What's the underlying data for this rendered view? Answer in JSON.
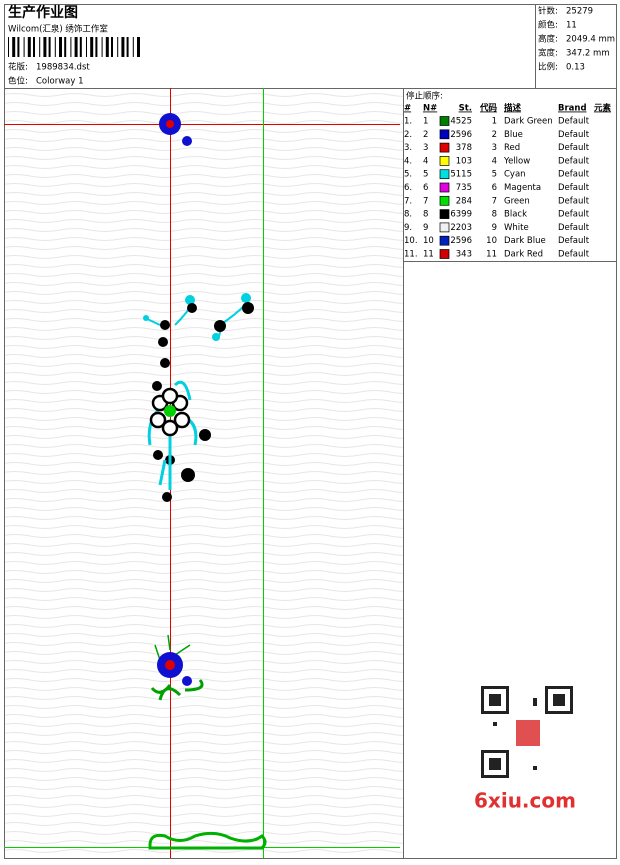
{
  "header": {
    "title": "生产作业图",
    "studio": "Wilcom(汇泉) 绣饰工作室",
    "file_label": "花版:",
    "file": "1989834.dst",
    "colorway_label": "色位:",
    "colorway": "Colorway 1"
  },
  "info": [
    {
      "label": "针数:",
      "value": "25279"
    },
    {
      "label": "颜色:",
      "value": "11"
    },
    {
      "label": "高度:",
      "value": "2049.4 mm"
    },
    {
      "label": "宽度:",
      "value": "347.2 mm"
    },
    {
      "label": "比例:",
      "value": "0.13"
    }
  ],
  "table": {
    "title": "停止顺序:",
    "columns": [
      "#",
      "N#",
      "St.",
      "代码",
      "描述",
      "Brand",
      "元素"
    ],
    "rows": [
      {
        "no": "1.",
        "needle": "1",
        "color": "#008000",
        "stitches": "4525",
        "code": "1",
        "desc": "Dark Green",
        "brand": "Default"
      },
      {
        "no": "2.",
        "needle": "2",
        "color": "#0000c0",
        "stitches": "2596",
        "code": "2",
        "desc": "Blue",
        "brand": "Default"
      },
      {
        "no": "3.",
        "needle": "3",
        "color": "#e00000",
        "stitches": "378",
        "code": "3",
        "desc": "Red",
        "brand": "Default"
      },
      {
        "no": "4.",
        "needle": "4",
        "color": "#ffff00",
        "stitches": "103",
        "code": "4",
        "desc": "Yellow",
        "brand": "Default"
      },
      {
        "no": "5.",
        "needle": "5",
        "color": "#00e0e0",
        "stitches": "5115",
        "code": "5",
        "desc": "Cyan",
        "brand": "Default"
      },
      {
        "no": "6.",
        "needle": "6",
        "color": "#e000e0",
        "stitches": "735",
        "code": "6",
        "desc": "Magenta",
        "brand": "Default"
      },
      {
        "no": "7.",
        "needle": "7",
        "color": "#00e000",
        "stitches": "284",
        "code": "7",
        "desc": "Green",
        "brand": "Default"
      },
      {
        "no": "8.",
        "needle": "8",
        "color": "#000000",
        "stitches": "6399",
        "code": "8",
        "desc": "Black",
        "brand": "Default"
      },
      {
        "no": "9.",
        "needle": "9",
        "color": "#f0f0f0",
        "stitches": "2203",
        "code": "9",
        "desc": "White",
        "brand": "Default"
      },
      {
        "no": "10.",
        "needle": "10",
        "color": "#0020c0",
        "stitches": "2596",
        "code": "10",
        "desc": "Dark Blue",
        "brand": "Default"
      },
      {
        "no": "11.",
        "needle": "11",
        "color": "#d00000",
        "stitches": "343",
        "code": "11",
        "desc": "Dark Red",
        "brand": "Default"
      }
    ]
  },
  "watermark": "6xiu.com"
}
